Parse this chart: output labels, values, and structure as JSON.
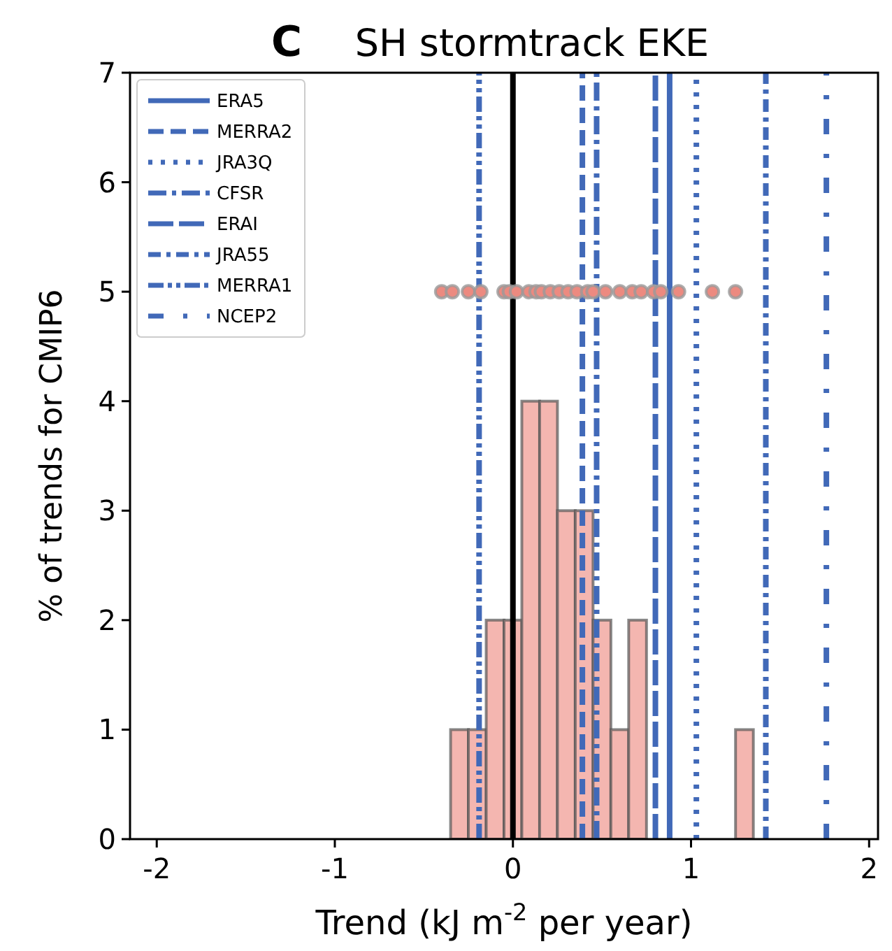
{
  "chart_data": {
    "type": "histogram",
    "title": "SH stormtrack EKE",
    "annotations": [
      "C"
    ],
    "xlabel": "Trend (kJ m$^{-2}$ per year)",
    "ylabel": "% of trends for CMIP6",
    "bins": [
      -0.35,
      -0.25,
      -0.15,
      -0.05,
      0.05,
      0.15,
      0.25,
      0.35,
      0.45,
      0.55,
      0.65,
      0.75,
      0.85,
      0.95,
      1.05,
      1.15,
      1.25,
      1.35
    ],
    "values": [
      1,
      1,
      2,
      2,
      4,
      4,
      3,
      3,
      2,
      1,
      2,
      0,
      0,
      0,
      0,
      0,
      1
    ],
    "color": "#f4b6b0",
    "series": [
      {
        "type": "line",
        "name": "ERA5",
        "color": "#4169b8",
        "line_style": "solid",
        "x": [
          0.88,
          0.88
        ],
        "values": [
          0,
          7
        ]
      },
      {
        "type": "line",
        "name": "MERRA2",
        "color": "#4169b8",
        "line_style": "dashed",
        "x": [
          0.39,
          0.39
        ],
        "values": [
          0,
          7
        ]
      },
      {
        "type": "line",
        "name": "JRA3Q",
        "color": "#4169b8",
        "line_style": "dotted",
        "x": [
          1.03,
          1.03
        ],
        "values": [
          0,
          7
        ]
      },
      {
        "type": "line",
        "name": "CFSR",
        "color": "#4169b8",
        "line_style": "dashdot",
        "x": [
          0.47,
          0.47
        ],
        "values": [
          0,
          7
        ]
      },
      {
        "type": "line",
        "name": "ERAI",
        "color": "#4169b8",
        "line_style": "longdash",
        "x": [
          0.8,
          0.8
        ],
        "values": [
          0,
          7
        ]
      },
      {
        "type": "line",
        "name": "JRA55",
        "color": "#4169b8",
        "line_style": "densedashdot",
        "x": [
          1.42,
          1.42
        ],
        "values": [
          0,
          7
        ]
      },
      {
        "type": "line",
        "name": "MERRA1",
        "color": "#4169b8",
        "line_style": "dashdotdot",
        "x": [
          -0.19,
          -0.19
        ],
        "values": [
          0,
          7
        ]
      },
      {
        "type": "line",
        "name": "NCEP2",
        "color": "#4169b8",
        "line_style": "loosedashdot",
        "x": [
          1.76,
          1.76
        ],
        "values": [
          0,
          7
        ]
      },
      {
        "type": "scatter",
        "color": "#ec8a80",
        "marker": "circle",
        "x": [
          -0.4,
          -0.34,
          -0.25,
          -0.18,
          -0.05,
          -0.02,
          0.02,
          0.09,
          0.13,
          0.16,
          0.21,
          0.26,
          0.31,
          0.36,
          0.42,
          0.45,
          0.52,
          0.6,
          0.67,
          0.72,
          0.79,
          0.83,
          0.93,
          1.12,
          1.25
        ],
        "values": [
          5,
          5,
          5,
          5,
          5,
          5,
          5,
          5,
          5,
          5,
          5,
          5,
          5,
          5,
          5,
          5,
          5,
          5,
          5,
          5,
          5,
          5,
          5,
          5,
          5
        ]
      }
    ],
    "ref_lines": [
      {
        "axis": "x",
        "value": 0,
        "color": "#000000",
        "line_style": "solid"
      }
    ],
    "xlim": [
      -2.15,
      2.05
    ],
    "ylim": [
      0,
      7
    ],
    "xticks": [
      -2,
      -1,
      0,
      1,
      2
    ],
    "yticks": [
      0,
      1,
      2,
      3,
      4,
      5,
      6,
      7
    ],
    "grid": false,
    "legend": "top left"
  }
}
